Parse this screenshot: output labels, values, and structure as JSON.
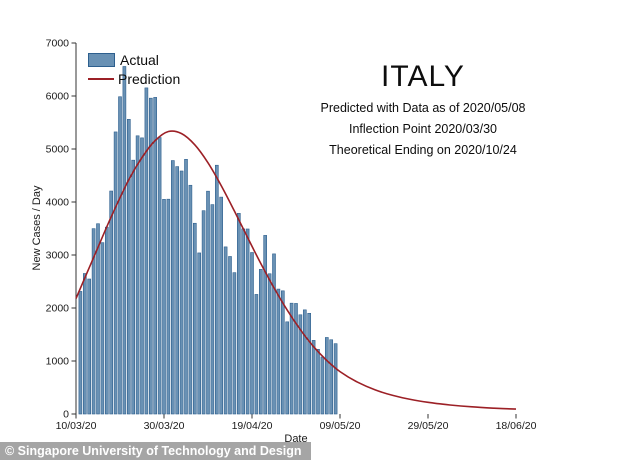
{
  "title_block": {
    "title": "ITALY",
    "subtitle_lines": [
      "Predicted with Data as of 2020/05/08",
      "Inflection Point 2020/03/30",
      "Theoretical Ending on 2020/10/24"
    ]
  },
  "legend": {
    "items": [
      {
        "label": "Actual",
        "swatch": "bar"
      },
      {
        "label": "Prediction",
        "swatch": "line"
      }
    ]
  },
  "attribution": {
    "text": "© Singapore University of Technology and Design"
  },
  "chart_data": {
    "type": "bar",
    "title": "ITALY",
    "xlabel": "Date",
    "ylabel": "New Cases / Day",
    "ylim": [
      0,
      7000
    ],
    "y_ticks": [
      0,
      1000,
      2000,
      3000,
      4000,
      5000,
      6000,
      7000
    ],
    "x_axis": {
      "tick_labels": [
        "10/03/20",
        "30/03/20",
        "19/04/20",
        "09/05/20",
        "29/05/20",
        "18/06/20"
      ],
      "tick_days": [
        0,
        20,
        40,
        60,
        80,
        100
      ],
      "day0_date": "10/03/20"
    },
    "grid": false,
    "legend_position": "top-left-inside",
    "series": [
      {
        "name": "Actual",
        "kind": "bar",
        "start_day": 1,
        "start_date": "11/03/20",
        "end_date": "08/05/20",
        "values": [
          2313,
          2651,
          2547,
          3497,
          3590,
          3233,
          3526,
          4207,
          5322,
          5986,
          6557,
          5560,
          4789,
          5249,
          5210,
          6153,
          5959,
          5974,
          5217,
          4050,
          4053,
          4782,
          4668,
          4585,
          4805,
          4316,
          3599,
          3039,
          3836,
          4204,
          3951,
          4694,
          4092,
          3153,
          2972,
          2667,
          3786,
          3493,
          3491,
          3047,
          2256,
          2729,
          3370,
          2646,
          3021,
          2357,
          2324,
          1739,
          2091,
          2086,
          1872,
          1965,
          1900,
          1389,
          1221,
          1075,
          1444,
          1401,
          1327
        ]
      },
      {
        "name": "Prediction",
        "kind": "line",
        "points_day_value": [
          [
            0,
            2180
          ],
          [
            4,
            2950
          ],
          [
            8,
            3720
          ],
          [
            12,
            4420
          ],
          [
            15,
            4840
          ],
          [
            18,
            5160
          ],
          [
            21,
            5330
          ],
          [
            24,
            5290
          ],
          [
            27,
            5080
          ],
          [
            30,
            4740
          ],
          [
            33,
            4310
          ],
          [
            36,
            3830
          ],
          [
            39,
            3330
          ],
          [
            42,
            2840
          ],
          [
            45,
            2380
          ],
          [
            48,
            1960
          ],
          [
            51,
            1590
          ],
          [
            54,
            1270
          ],
          [
            57,
            1010
          ],
          [
            60,
            800
          ],
          [
            64,
            600
          ],
          [
            68,
            455
          ],
          [
            72,
            350
          ],
          [
            76,
            275
          ],
          [
            80,
            220
          ],
          [
            85,
            170
          ],
          [
            90,
            135
          ],
          [
            95,
            110
          ],
          [
            100,
            92
          ]
        ],
        "peak": {
          "value": 5330,
          "date": "30/03/20"
        }
      }
    ],
    "colors": {
      "bar_fill": "#6991b4",
      "bar_edge": "#2d5f8e",
      "prediction_line": "#9c2026",
      "axis": "#333333",
      "tick_text": "#1a1a1a"
    }
  }
}
